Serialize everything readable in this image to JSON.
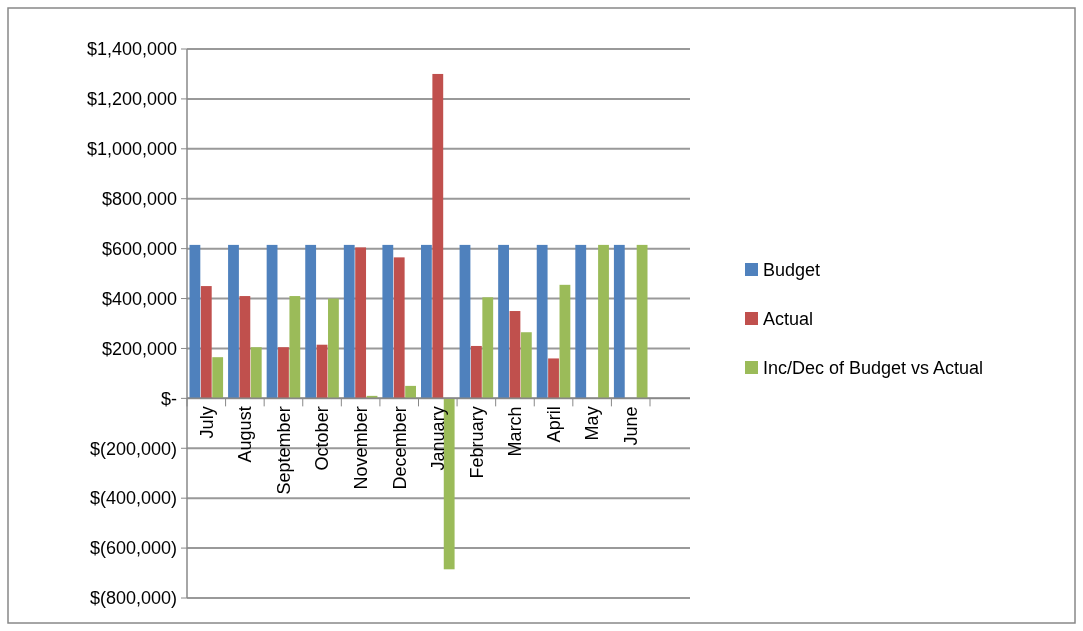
{
  "chart_data": {
    "type": "bar",
    "categories": [
      "July",
      "August",
      "September",
      "October",
      "November",
      "December",
      "January",
      "February",
      "March",
      "April",
      "May",
      "June"
    ],
    "series": [
      {
        "name": "Budget",
        "color": "#4f81bd",
        "values": [
          615000,
          615000,
          615000,
          615000,
          615000,
          615000,
          615000,
          615000,
          615000,
          615000,
          615000,
          615000
        ]
      },
      {
        "name": "Actual",
        "color": "#c0504d",
        "values": [
          450000,
          410000,
          205000,
          215000,
          605000,
          565000,
          1300000,
          210000,
          350000,
          160000,
          0,
          0
        ]
      },
      {
        "name": "Inc/Dec of Budget vs Actual",
        "color": "#9bbb59",
        "values": [
          165000,
          205000,
          410000,
          400000,
          10000,
          50000,
          -685000,
          405000,
          265000,
          455000,
          615000,
          615000
        ]
      }
    ],
    "ylim": [
      -800000,
      1400000
    ],
    "yticks": [
      {
        "value": -800000,
        "label": "$(800,000)"
      },
      {
        "value": -600000,
        "label": "$(600,000)"
      },
      {
        "value": -400000,
        "label": "$(400,000)"
      },
      {
        "value": -200000,
        "label": "$(200,000)"
      },
      {
        "value": 0,
        "label": "$-"
      },
      {
        "value": 200000,
        "label": "$200,000"
      },
      {
        "value": 400000,
        "label": "$400,000"
      },
      {
        "value": 600000,
        "label": "$600,000"
      },
      {
        "value": 800000,
        "label": "$800,000"
      },
      {
        "value": 1000000,
        "label": "$1,000,000"
      },
      {
        "value": 1200000,
        "label": "$1,200,000"
      },
      {
        "value": 1400000,
        "label": "$1,400,000"
      }
    ],
    "grid": "y",
    "legend": "right"
  }
}
